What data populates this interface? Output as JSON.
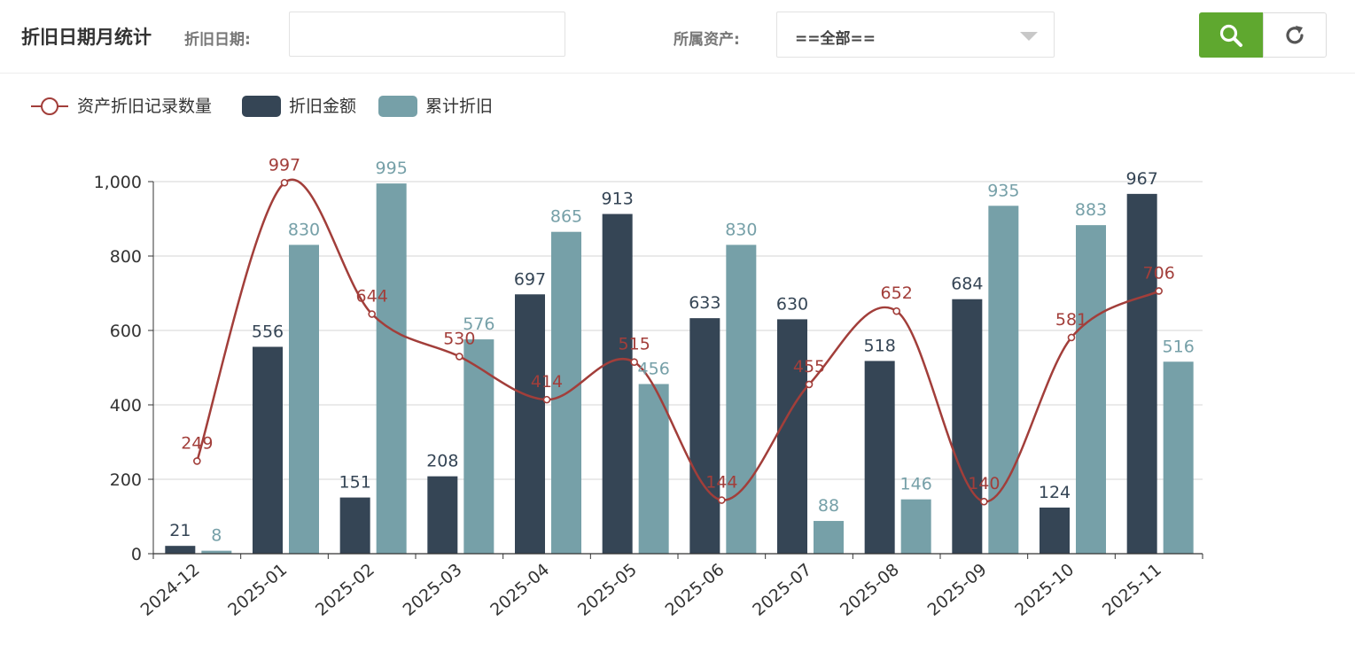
{
  "header": {
    "title": "折旧日期月统计",
    "date_label": "折旧日期:",
    "date_value": "",
    "asset_label": "所属资产:",
    "asset_selected": "==全部=="
  },
  "colors": {
    "line": "#a23e3a",
    "amount": "#354555",
    "cumulative": "#76a0a8",
    "search_button": "#5fa82f"
  },
  "chart_data": {
    "type": "bar",
    "categories": [
      "2024-12",
      "2025-01",
      "2025-02",
      "2025-03",
      "2025-04",
      "2025-05",
      "2025-06",
      "2025-07",
      "2025-08",
      "2025-09",
      "2025-10",
      "2025-11"
    ],
    "series": [
      {
        "name": "资产折旧记录数量",
        "type": "line",
        "smooth": true,
        "values": [
          249,
          997,
          644,
          530,
          414,
          515,
          144,
          455,
          652,
          140,
          581,
          706
        ]
      },
      {
        "name": "折旧金额",
        "type": "bar",
        "values": [
          21,
          556,
          151,
          208,
          697,
          913,
          633,
          630,
          518,
          684,
          124,
          967
        ]
      },
      {
        "name": "累计折旧",
        "type": "bar",
        "values": [
          8,
          830,
          995,
          576,
          865,
          456,
          830,
          88,
          146,
          935,
          883,
          516
        ]
      }
    ],
    "ylim": [
      0,
      1000
    ],
    "yticks": [
      "0",
      "200",
      "400",
      "600",
      "800",
      "1,000"
    ],
    "grid": true,
    "legend": "top-left"
  }
}
